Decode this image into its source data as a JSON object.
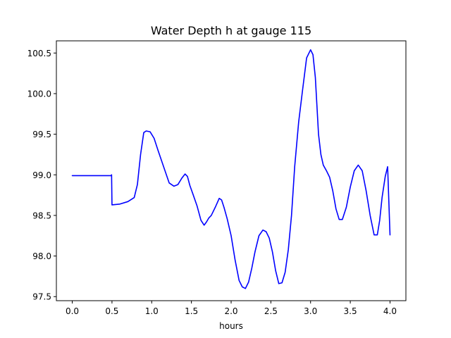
{
  "chart_data": {
    "type": "line",
    "title": "Water Depth h at gauge 115",
    "xlabel": "hours",
    "ylabel": "",
    "xlim": [
      -0.2,
      4.2
    ],
    "ylim": [
      97.45,
      100.65
    ],
    "xticks": [
      0.0,
      0.5,
      1.0,
      1.5,
      2.0,
      2.5,
      3.0,
      3.5,
      4.0
    ],
    "xtick_labels": [
      "0.0",
      "0.5",
      "1.0",
      "1.5",
      "2.0",
      "2.5",
      "3.0",
      "3.5",
      "4.0"
    ],
    "yticks": [
      97.5,
      98.0,
      98.5,
      99.0,
      99.5,
      100.0,
      100.5
    ],
    "ytick_labels": [
      "97.5",
      "98.0",
      "98.5",
      "99.0",
      "99.5",
      "100.0",
      "100.5"
    ],
    "grid": false,
    "legend": "none",
    "series": [
      {
        "color": "#0000ff",
        "x": [
          0.0,
          0.2,
          0.4,
          0.49,
          0.495,
          0.5,
          0.6,
          0.7,
          0.78,
          0.82,
          0.86,
          0.9,
          0.93,
          0.98,
          1.03,
          1.08,
          1.15,
          1.22,
          1.28,
          1.33,
          1.38,
          1.42,
          1.45,
          1.48,
          1.52,
          1.57,
          1.62,
          1.66,
          1.69,
          1.72,
          1.75,
          1.8,
          1.85,
          1.88,
          1.91,
          1.95,
          2.0,
          2.05,
          2.1,
          2.14,
          2.18,
          2.22,
          2.26,
          2.3,
          2.35,
          2.4,
          2.44,
          2.48,
          2.52,
          2.56,
          2.6,
          2.64,
          2.68,
          2.72,
          2.76,
          2.8,
          2.85,
          2.9,
          2.95,
          3.0,
          3.03,
          3.06,
          3.08,
          3.1,
          3.13,
          3.16,
          3.2,
          3.24,
          3.28,
          3.32,
          3.36,
          3.4,
          3.45,
          3.5,
          3.55,
          3.6,
          3.65,
          3.7,
          3.75,
          3.8,
          3.84,
          3.87,
          3.9,
          3.94,
          3.97,
          4.0
        ],
        "y": [
          98.99,
          98.99,
          98.99,
          98.99,
          99.0,
          98.63,
          98.64,
          98.67,
          98.72,
          98.88,
          99.25,
          99.52,
          99.54,
          99.53,
          99.45,
          99.3,
          99.1,
          98.9,
          98.86,
          98.88,
          98.96,
          99.01,
          98.98,
          98.87,
          98.76,
          98.62,
          98.44,
          98.38,
          98.42,
          98.47,
          98.5,
          98.6,
          98.71,
          98.69,
          98.6,
          98.46,
          98.25,
          97.95,
          97.7,
          97.62,
          97.6,
          97.68,
          97.85,
          98.05,
          98.25,
          98.32,
          98.3,
          98.22,
          98.05,
          97.82,
          97.66,
          97.67,
          97.8,
          98.08,
          98.5,
          99.1,
          99.65,
          100.05,
          100.44,
          100.54,
          100.48,
          100.2,
          99.85,
          99.5,
          99.25,
          99.12,
          99.05,
          98.97,
          98.8,
          98.58,
          98.45,
          98.45,
          98.6,
          98.85,
          99.05,
          99.12,
          99.05,
          98.8,
          98.5,
          98.26,
          98.26,
          98.44,
          98.72,
          98.98,
          99.1,
          98.26
        ]
      }
    ]
  }
}
